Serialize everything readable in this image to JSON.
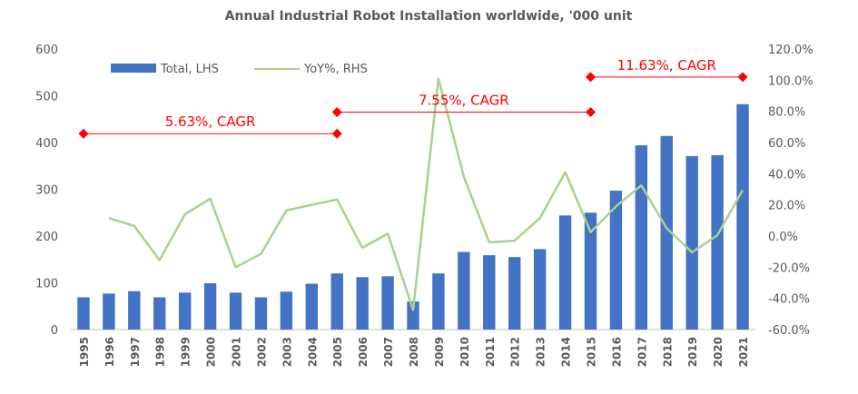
{
  "chart_data": {
    "type": "bar",
    "title": "Annual Industrial Robot Installation  worldwide, '000 unit",
    "categories": [
      "1995",
      "1996",
      "1997",
      "1998",
      "1999",
      "2000",
      "2001",
      "2002",
      "2003",
      "2004",
      "2005",
      "2006",
      "2007",
      "2008",
      "2009",
      "2010",
      "2011",
      "2012",
      "2013",
      "2014",
      "2015",
      "2016",
      "2017",
      "2018",
      "2019",
      "2020",
      "2021"
    ],
    "series": [
      {
        "name": "Total, LHS",
        "type": "bar",
        "axis": "left",
        "color": "#4472C4",
        "values": [
          69,
          77,
          82,
          69,
          79,
          99,
          79,
          69,
          81,
          98,
          120,
          112,
          114,
          60,
          120,
          166,
          159,
          155,
          172,
          244,
          250,
          297,
          394,
          414,
          371,
          373,
          482
        ]
      },
      {
        "name": "YoY%, RHS",
        "type": "line",
        "axis": "right",
        "color": "#A9D18E",
        "values": [
          null,
          11.5,
          6.5,
          -15.5,
          14.0,
          24.0,
          -20.0,
          -11.5,
          16.5,
          20.0,
          23.5,
          -7.5,
          1.5,
          -47.5,
          101.0,
          38.0,
          -4.0,
          -3.0,
          11.5,
          41.0,
          2.5,
          19.0,
          32.5,
          5.0,
          -10.5,
          0.5,
          29.5
        ]
      }
    ],
    "y_left": {
      "min": 0,
      "max": 600,
      "ticks": [
        "0",
        "100",
        "200",
        "300",
        "400",
        "500",
        "600"
      ]
    },
    "y_right": {
      "min": -60,
      "max": 120,
      "ticks": [
        "-60.0%",
        "-40.0%",
        "-20.0%",
        "0.0%",
        "20.0%",
        "40.0%",
        "60.0%",
        "80.0%",
        "100.0%",
        "120.0%"
      ]
    },
    "legend": {
      "position": "top-left",
      "items": [
        "Total, LHS",
        "YoY%, RHS"
      ]
    },
    "grid": false,
    "annotations": [
      {
        "label": "5.63%, CAGR",
        "from": "1995",
        "to": "2005",
        "value": 419,
        "color": "#FF0000"
      },
      {
        "label": "7.55%, CAGR",
        "from": "2005",
        "to": "2015",
        "value": 465,
        "color": "#FF0000"
      },
      {
        "label": "11.63%, CAGR",
        "from": "2015",
        "to": "2021",
        "value": 540,
        "color": "#FF0000"
      }
    ]
  }
}
